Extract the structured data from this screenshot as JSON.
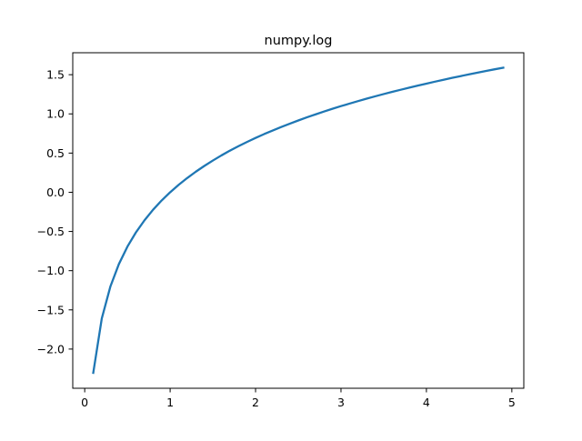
{
  "chart_data": {
    "type": "line",
    "title": "numpy.log",
    "xlabel": "",
    "ylabel": "",
    "xlim": [
      -0.14,
      5.14
    ],
    "ylim": [
      -2.5,
      1.78
    ],
    "xticks": [
      0,
      1,
      2,
      3,
      4,
      5
    ],
    "yticks": [
      -2.0,
      -1.5,
      -1.0,
      -0.5,
      0.0,
      0.5,
      1.0,
      1.5
    ],
    "xtick_labels": [
      "0",
      "1",
      "2",
      "3",
      "4",
      "5"
    ],
    "ytick_labels": [
      "−2.0",
      "−1.5",
      "−1.0",
      "−0.5",
      "0.0",
      "0.5",
      "1.0",
      "1.5"
    ],
    "grid": false,
    "series": [
      {
        "color": "#1f77b4",
        "x": [
          0.1,
          0.2,
          0.3,
          0.4,
          0.5,
          0.6,
          0.7,
          0.8,
          0.9,
          1.0,
          1.1,
          1.2,
          1.3,
          1.4,
          1.5,
          1.6,
          1.7,
          1.8,
          1.9,
          2.0,
          2.1,
          2.2,
          2.3,
          2.4,
          2.5,
          2.6,
          2.7,
          2.8,
          2.9,
          3.0,
          3.1,
          3.2,
          3.3,
          3.4,
          3.5,
          3.6,
          3.7,
          3.8,
          3.9,
          4.0,
          4.1,
          4.2,
          4.3,
          4.4,
          4.5,
          4.6,
          4.7,
          4.8,
          4.9
        ],
        "y": [
          -2.303,
          -1.609,
          -1.204,
          -0.916,
          -0.693,
          -0.511,
          -0.357,
          -0.223,
          -0.105,
          0.0,
          0.095,
          0.182,
          0.262,
          0.336,
          0.405,
          0.47,
          0.531,
          0.588,
          0.642,
          0.693,
          0.742,
          0.788,
          0.833,
          0.875,
          0.916,
          0.956,
          0.993,
          1.03,
          1.065,
          1.099,
          1.131,
          1.163,
          1.194,
          1.224,
          1.253,
          1.281,
          1.308,
          1.335,
          1.361,
          1.386,
          1.411,
          1.435,
          1.459,
          1.482,
          1.504,
          1.526,
          1.548,
          1.569,
          1.589
        ]
      }
    ]
  }
}
